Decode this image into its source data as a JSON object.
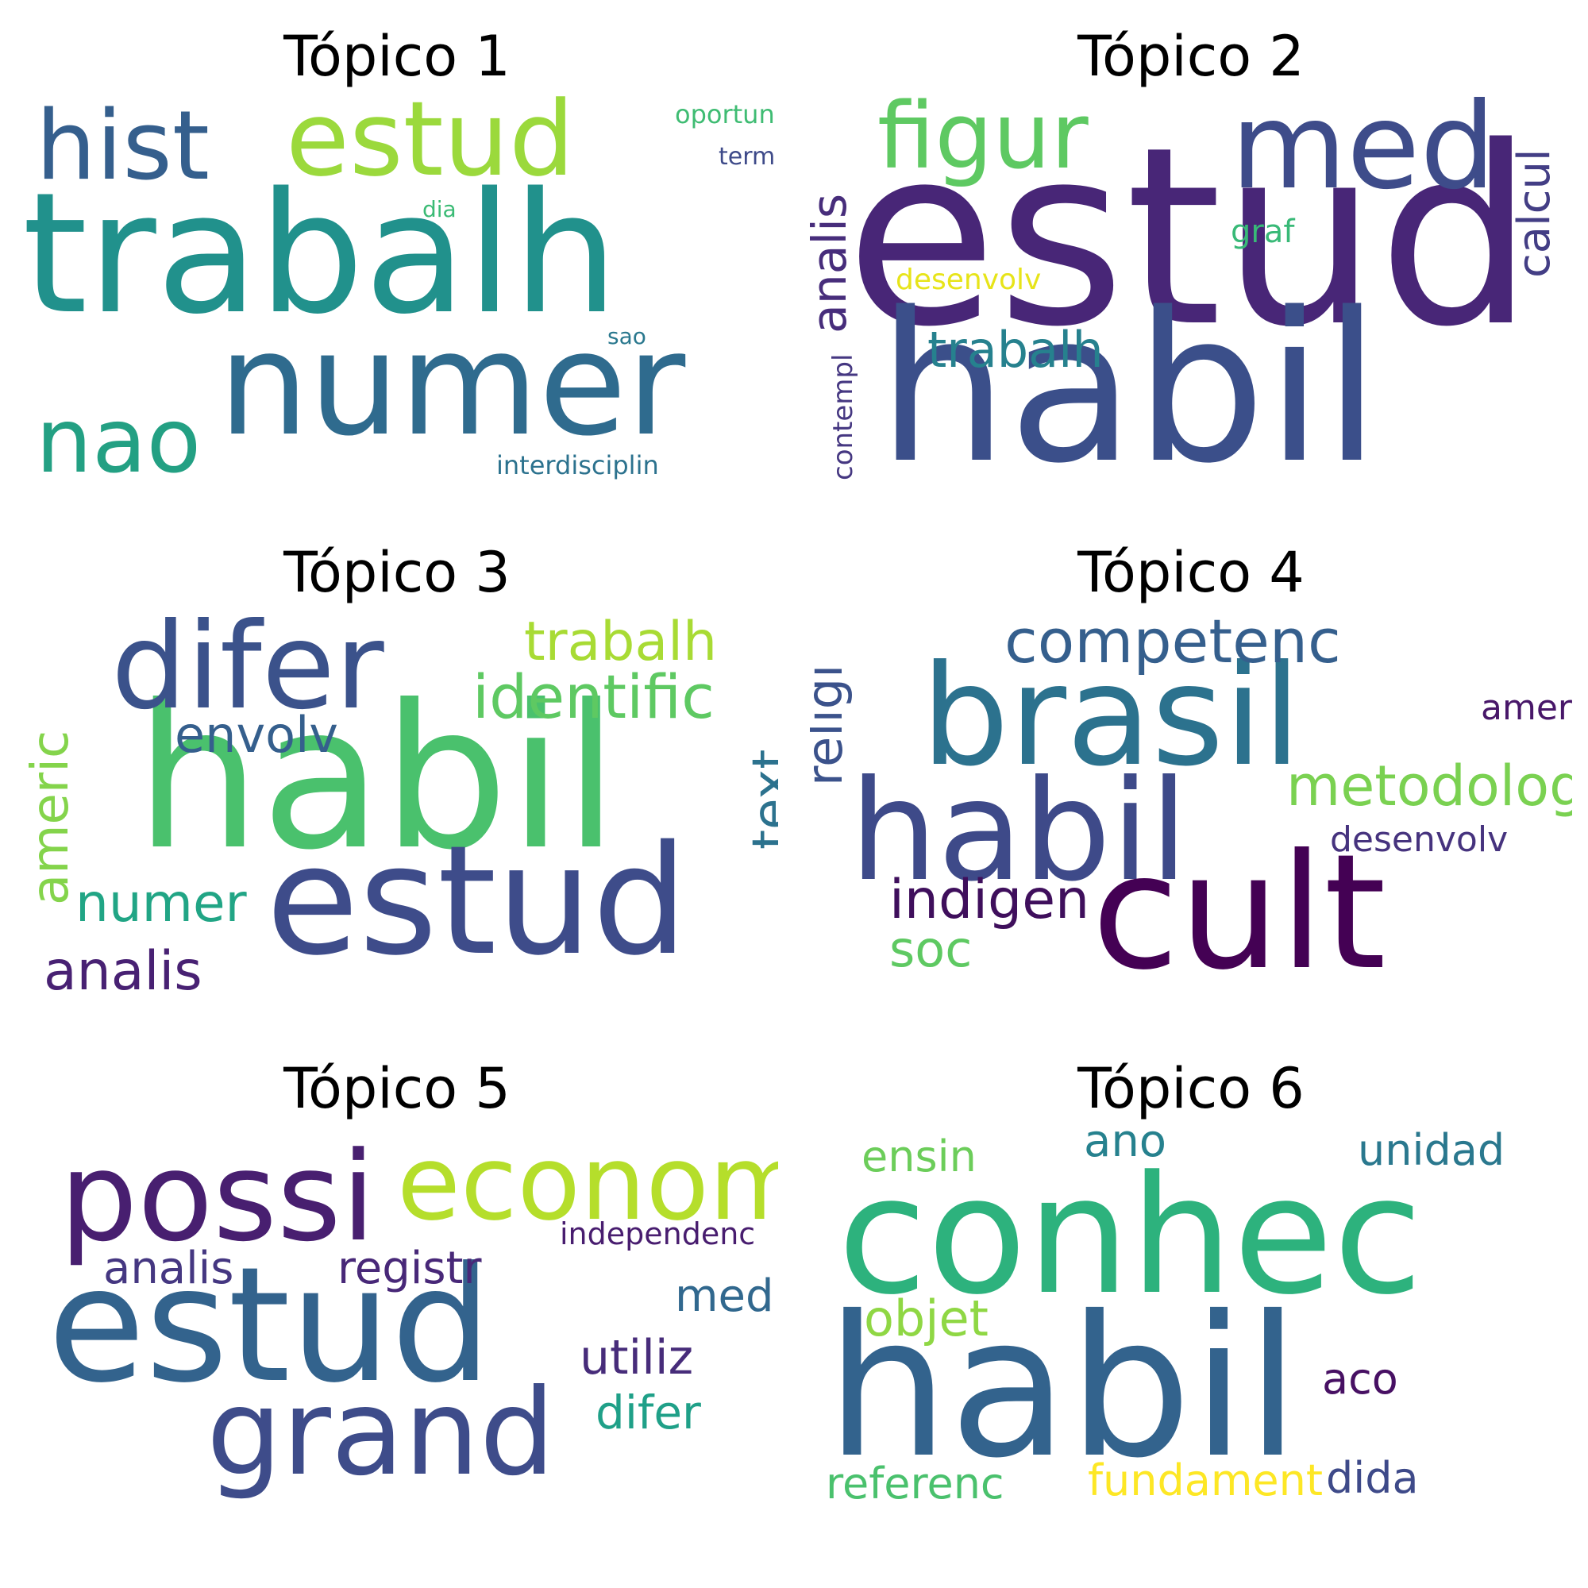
{
  "topics": [
    {
      "title": "Tópico 1",
      "words": [
        {
          "text": "trabalh",
          "color": "#21918c"
        },
        {
          "text": "numer",
          "color": "#2f6b8e"
        },
        {
          "text": "estud",
          "color": "#9bd93c"
        },
        {
          "text": "hist",
          "color": "#355f8d"
        },
        {
          "text": "nao",
          "color": "#23a083"
        },
        {
          "text": "oportun",
          "color": "#3fbc73"
        },
        {
          "text": "term",
          "color": "#3e4a89"
        },
        {
          "text": "dia",
          "color": "#3bbb75"
        },
        {
          "text": "sao",
          "color": "#2a788e"
        },
        {
          "text": "interdisciplin",
          "color": "#2c728e"
        }
      ]
    },
    {
      "title": "Tópico 2",
      "words": [
        {
          "text": "estud",
          "color": "#482677"
        },
        {
          "text": "habil",
          "color": "#3b4f8a"
        },
        {
          "text": "med",
          "color": "#3e4c8a"
        },
        {
          "text": "figur",
          "color": "#5ec962"
        },
        {
          "text": "analis",
          "color": "#472d7b"
        },
        {
          "text": "calcul",
          "color": "#433e85"
        },
        {
          "text": "trabalh",
          "color": "#26818e"
        },
        {
          "text": "graf",
          "color": "#38b977"
        },
        {
          "text": "desenvolv",
          "color": "#e7e419"
        },
        {
          "text": "contempl",
          "color": "#453781"
        }
      ]
    },
    {
      "title": "Tópico 3",
      "words": [
        {
          "text": "habil",
          "color": "#4ac16d"
        },
        {
          "text": "estud",
          "color": "#3e4c8a"
        },
        {
          "text": "difer",
          "color": "#3b528b"
        },
        {
          "text": "trabalh",
          "color": "#a8db34"
        },
        {
          "text": "identific",
          "color": "#5ec962"
        },
        {
          "text": "envolv",
          "color": "#355f8d"
        },
        {
          "text": "text",
          "color": "#2c728e"
        },
        {
          "text": "americ",
          "color": "#84d44b"
        },
        {
          "text": "numer",
          "color": "#21a585"
        },
        {
          "text": "analis",
          "color": "#482173"
        }
      ]
    },
    {
      "title": "Tópico 4",
      "words": [
        {
          "text": "brasil",
          "color": "#2c728e"
        },
        {
          "text": "habil",
          "color": "#3e4a89"
        },
        {
          "text": "cult",
          "color": "#440154"
        },
        {
          "text": "competenc",
          "color": "#355f8d"
        },
        {
          "text": "metodolog",
          "color": "#7ad151"
        },
        {
          "text": "religi",
          "color": "#3b528b"
        },
        {
          "text": "amer",
          "color": "#481769"
        },
        {
          "text": "desenvolv",
          "color": "#46337e"
        },
        {
          "text": "indigen",
          "color": "#3f0f5c"
        },
        {
          "text": "soc",
          "color": "#5ec962"
        }
      ]
    },
    {
      "title": "Tópico 5",
      "words": [
        {
          "text": "estud",
          "color": "#33638d"
        },
        {
          "text": "possi",
          "color": "#481f70"
        },
        {
          "text": "econom",
          "color": "#b5de2b"
        },
        {
          "text": "grand",
          "color": "#3e4c8a"
        },
        {
          "text": "analis",
          "color": "#453781"
        },
        {
          "text": "registr",
          "color": "#482878"
        },
        {
          "text": "independenc",
          "color": "#481d6f"
        },
        {
          "text": "med",
          "color": "#31688e"
        },
        {
          "text": "utiliz",
          "color": "#472c7a"
        },
        {
          "text": "difer",
          "color": "#1fa088"
        }
      ]
    },
    {
      "title": "Tópico 6",
      "words": [
        {
          "text": "conhec",
          "color": "#2db27d"
        },
        {
          "text": "habil",
          "color": "#33638d"
        },
        {
          "text": "ensin",
          "color": "#6ccd5a"
        },
        {
          "text": "ano",
          "color": "#26818e"
        },
        {
          "text": "unidad",
          "color": "#2a788e"
        },
        {
          "text": "objet",
          "color": "#8fd744"
        },
        {
          "text": "aco",
          "color": "#471063"
        },
        {
          "text": "referenc",
          "color": "#4ac16d"
        },
        {
          "text": "fundament",
          "color": "#fde725"
        },
        {
          "text": "dida",
          "color": "#3e4a89"
        }
      ]
    }
  ]
}
